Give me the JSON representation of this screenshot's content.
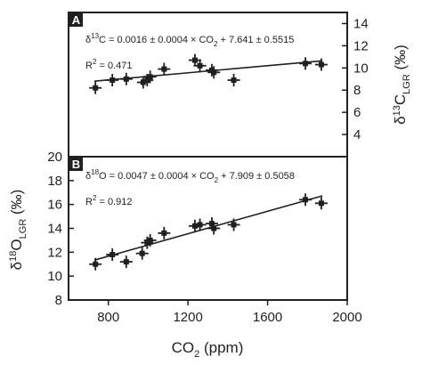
{
  "chart_data": [
    {
      "type": "scatter",
      "panel_label": "A",
      "equation": {
        "pre": "δ",
        "sup": "13",
        "post": "C = 0.0016 ± 0.0004 × CO",
        "sub": "2",
        "tail": " + 7.641 ± 0.5515"
      },
      "r2": {
        "pre": "R",
        "sup": "2",
        "post": " = 0.471"
      },
      "ylabel": {
        "pre": "δ",
        "sup": "13",
        "main": "C",
        "sub": "LGR",
        "unit": " (‰)"
      },
      "ylabel_side": "right",
      "ylim": [
        2,
        15
      ],
      "yticks": [
        4,
        6,
        8,
        10,
        12,
        14
      ],
      "xlim": [
        600,
        2000
      ],
      "fit": {
        "slope": 0.0016,
        "intercept": 7.641
      },
      "series": [
        {
          "points": [
            {
              "x": 735,
              "y": 8.2
            },
            {
              "x": 820,
              "y": 8.9
            },
            {
              "x": 890,
              "y": 9.0
            },
            {
              "x": 975,
              "y": 8.7
            },
            {
              "x": 995,
              "y": 8.9
            },
            {
              "x": 1010,
              "y": 9.2
            },
            {
              "x": 1080,
              "y": 9.9
            },
            {
              "x": 1235,
              "y": 10.7
            },
            {
              "x": 1260,
              "y": 10.2
            },
            {
              "x": 1320,
              "y": 9.8
            },
            {
              "x": 1330,
              "y": 9.6
            },
            {
              "x": 1430,
              "y": 8.9
            },
            {
              "x": 1790,
              "y": 10.4
            },
            {
              "x": 1870,
              "y": 10.3
            }
          ]
        }
      ]
    },
    {
      "type": "scatter",
      "panel_label": "B",
      "equation": {
        "pre": "δ",
        "sup": "18",
        "post": "O = 0.0047 ± 0.0004 × CO",
        "sub": "2",
        "tail": " + 7.909 ± 0.5058"
      },
      "r2": {
        "pre": "R",
        "sup": "2",
        "post": " = 0.912"
      },
      "ylabel": {
        "pre": "δ",
        "sup": "18",
        "main": "O",
        "sub": "LGR",
        "unit": " (‰)"
      },
      "ylabel_side": "left",
      "ylim": [
        8,
        20
      ],
      "yticks": [
        8,
        10,
        12,
        14,
        16,
        18,
        20
      ],
      "xlim": [
        600,
        2000
      ],
      "xticks": [
        800,
        1200,
        1600,
        2000
      ],
      "xlabel": {
        "main": "CO",
        "sub": "2",
        "unit": " (ppm)"
      },
      "fit": {
        "slope": 0.0047,
        "intercept": 7.909
      },
      "series": [
        {
          "points": [
            {
              "x": 735,
              "y": 11.0
            },
            {
              "x": 820,
              "y": 11.8
            },
            {
              "x": 890,
              "y": 11.2
            },
            {
              "x": 970,
              "y": 11.9
            },
            {
              "x": 995,
              "y": 12.8
            },
            {
              "x": 1010,
              "y": 13.0
            },
            {
              "x": 1080,
              "y": 13.6
            },
            {
              "x": 1235,
              "y": 14.2
            },
            {
              "x": 1260,
              "y": 14.3
            },
            {
              "x": 1320,
              "y": 14.4
            },
            {
              "x": 1330,
              "y": 14.0
            },
            {
              "x": 1430,
              "y": 14.3
            },
            {
              "x": 1790,
              "y": 16.4
            },
            {
              "x": 1870,
              "y": 16.1
            }
          ]
        }
      ]
    }
  ]
}
